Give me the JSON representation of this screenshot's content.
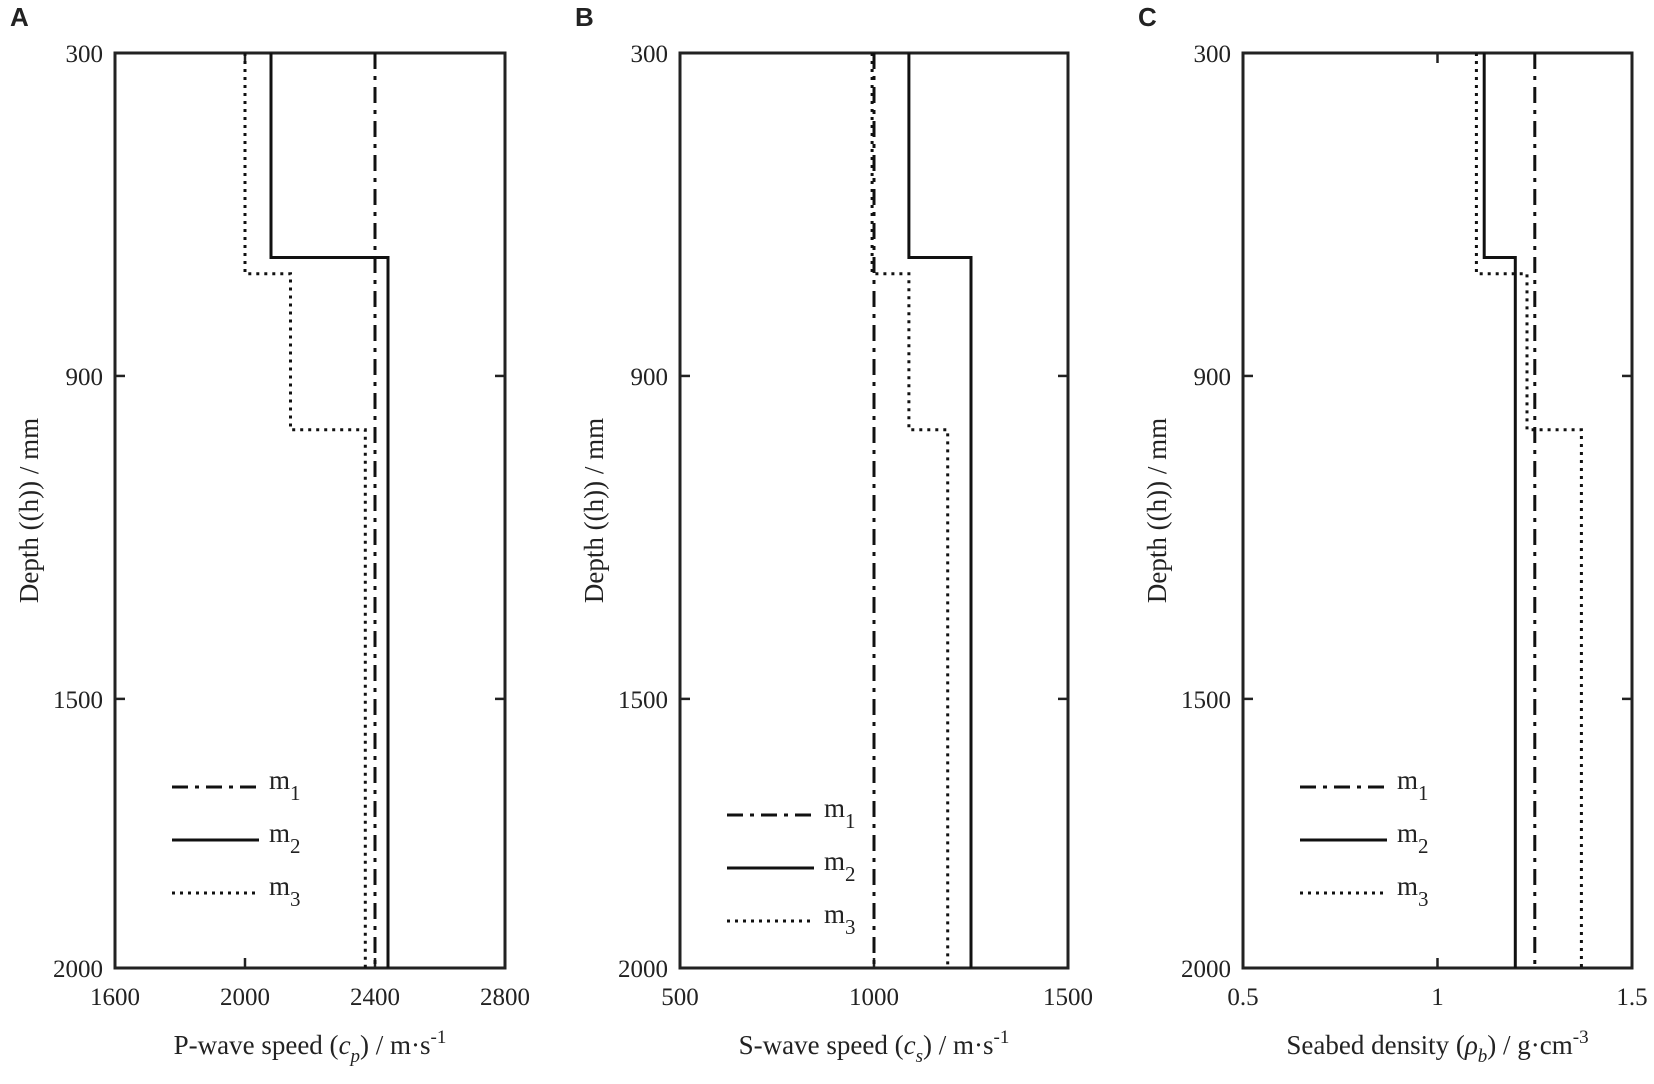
{
  "chart_data": [
    {
      "panel": "A",
      "type": "line",
      "xlabel": "P-wave speed (c_p) / m·s^-1",
      "xlabel_parts": {
        "pre": "P-wave speed (",
        "sym": "c",
        "sub": "p",
        "mid": ") / m·s",
        "sup": "-1"
      },
      "ylabel": "Depth ((h)) / mm",
      "xlim": [
        1600,
        2800
      ],
      "ylim": [
        300,
        2000
      ],
      "xticks": [
        "1600",
        "2000",
        "2400",
        "2800"
      ],
      "yticks": [
        "300",
        "900",
        "1500",
        "2000"
      ],
      "legend": "bottom-left",
      "series": [
        {
          "name": "m1",
          "label_main": "m",
          "label_sub": "1",
          "style": "dashdot",
          "points": [
            [
              2400,
              300
            ],
            [
              2400,
              2000
            ]
          ]
        },
        {
          "name": "m2",
          "label_main": "m",
          "label_sub": "2",
          "style": "solid",
          "points": [
            [
              2080,
              300
            ],
            [
              2080,
              680
            ],
            [
              2440,
              680
            ],
            [
              2440,
              2000
            ]
          ]
        },
        {
          "name": "m3",
          "label_main": "m",
          "label_sub": "3",
          "style": "dotted",
          "points": [
            [
              2000,
              300
            ],
            [
              2000,
              710
            ],
            [
              2140,
              710
            ],
            [
              2140,
              1000
            ],
            [
              2370,
              1000
            ],
            [
              2370,
              2000
            ]
          ]
        }
      ]
    },
    {
      "panel": "B",
      "type": "line",
      "xlabel": "S-wave speed (c_s) / m·s^-1",
      "xlabel_parts": {
        "pre": "S-wave speed (",
        "sym": "c",
        "sub": "s",
        "mid": ") / m·s",
        "sup": "-1"
      },
      "ylabel": "Depth ((h)) / mm",
      "xlim": [
        500,
        1500
      ],
      "ylim": [
        300,
        2000
      ],
      "xticks": [
        "500",
        "1000",
        "1500"
      ],
      "yticks": [
        "300",
        "900",
        "1500",
        "2000"
      ],
      "legend": "bottom-left",
      "series": [
        {
          "name": "m1",
          "label_main": "m",
          "label_sub": "1",
          "style": "dashdot",
          "points": [
            [
              1000,
              300
            ],
            [
              1000,
              2000
            ]
          ]
        },
        {
          "name": "m2",
          "label_main": "m",
          "label_sub": "2",
          "style": "solid",
          "points": [
            [
              1090,
              300
            ],
            [
              1090,
              680
            ],
            [
              1250,
              680
            ],
            [
              1250,
              2000
            ]
          ]
        },
        {
          "name": "m3",
          "label_main": "m",
          "label_sub": "3",
          "style": "dotted",
          "points": [
            [
              995,
              300
            ],
            [
              995,
              710
            ],
            [
              1090,
              710
            ],
            [
              1090,
              1000
            ],
            [
              1190,
              1000
            ],
            [
              1190,
              2000
            ]
          ]
        }
      ]
    },
    {
      "panel": "C",
      "type": "line",
      "xlabel": "Seabed density (ρ_b) / g·cm^-3",
      "xlabel_parts": {
        "pre": "Seabed density (",
        "sym": "ρ",
        "sub": "b",
        "mid": ") / g·cm",
        "sup": "-3"
      },
      "ylabel": "Depth ((h)) / mm",
      "xlim": [
        0.5,
        1.5
      ],
      "ylim": [
        300,
        2000
      ],
      "xticks": [
        "0.5",
        "1",
        "1.5"
      ],
      "yticks": [
        "300",
        "900",
        "1500",
        "2000"
      ],
      "legend": "bottom-left",
      "series": [
        {
          "name": "m1",
          "label_main": "m",
          "label_sub": "1",
          "style": "dashdot",
          "points": [
            [
              1.25,
              300
            ],
            [
              1.25,
              2000
            ]
          ]
        },
        {
          "name": "m2",
          "label_main": "m",
          "label_sub": "2",
          "style": "solid",
          "points": [
            [
              1.12,
              300
            ],
            [
              1.12,
              680
            ],
            [
              1.2,
              680
            ],
            [
              1.2,
              2000
            ]
          ]
        },
        {
          "name": "m3",
          "label_main": "m",
          "label_sub": "3",
          "style": "dotted",
          "points": [
            [
              1.1,
              300
            ],
            [
              1.1,
              710
            ],
            [
              1.23,
              710
            ],
            [
              1.23,
              1000
            ],
            [
              1.37,
              1000
            ],
            [
              1.37,
              2000
            ]
          ]
        }
      ]
    }
  ]
}
